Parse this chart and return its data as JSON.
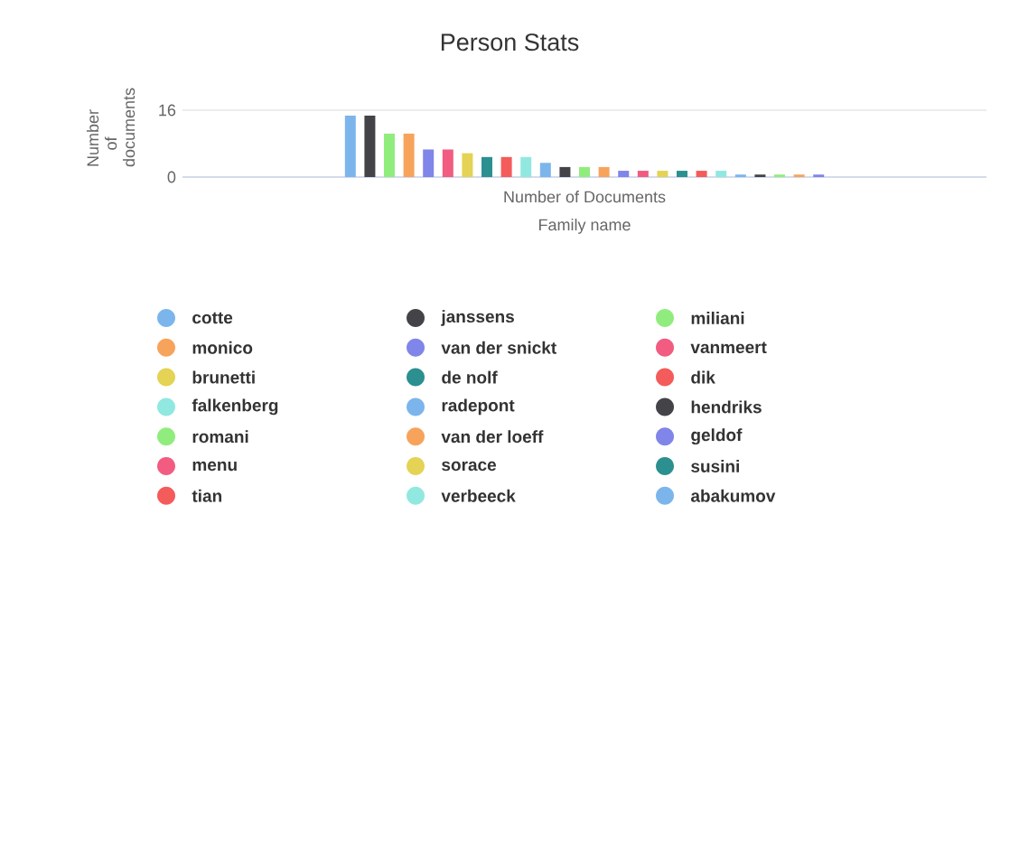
{
  "chart_data": {
    "type": "bar",
    "title": "Person Stats",
    "xlabel": "Family name",
    "ylabel": "Number of documents",
    "categories": [
      "Number of Documents"
    ],
    "series": [
      {
        "name": "cotte",
        "color": "#7cb5ec",
        "values": [
          14.7
        ]
      },
      {
        "name": "janssens",
        "color": "#434348",
        "values": [
          14.7
        ]
      },
      {
        "name": "miliani",
        "color": "#90ed7d",
        "values": [
          10.4
        ]
      },
      {
        "name": "monico",
        "color": "#f7a35c",
        "values": [
          10.4
        ]
      },
      {
        "name": "van der snickt",
        "color": "#8085e9",
        "values": [
          6.6
        ]
      },
      {
        "name": "vanmeert",
        "color": "#f15c80",
        "values": [
          6.6
        ]
      },
      {
        "name": "brunetti",
        "color": "#e4d354",
        "values": [
          5.7
        ]
      },
      {
        "name": "de nolf",
        "color": "#2b908f",
        "values": [
          4.8
        ]
      },
      {
        "name": "dik",
        "color": "#f45b5b",
        "values": [
          4.8
        ]
      },
      {
        "name": "falkenberg",
        "color": "#91e8e1",
        "values": [
          4.8
        ]
      },
      {
        "name": "radepont",
        "color": "#7cb5ec",
        "values": [
          3.4
        ]
      },
      {
        "name": "hendriks",
        "color": "#434348",
        "values": [
          2.4
        ]
      },
      {
        "name": "romani",
        "color": "#90ed7d",
        "values": [
          2.4
        ]
      },
      {
        "name": "van der loeff",
        "color": "#f7a35c",
        "values": [
          2.4
        ]
      },
      {
        "name": "geldof",
        "color": "#8085e9",
        "values": [
          1.5
        ]
      },
      {
        "name": "menu",
        "color": "#f15c80",
        "values": [
          1.5
        ]
      },
      {
        "name": "sorace",
        "color": "#e4d354",
        "values": [
          1.5
        ]
      },
      {
        "name": "susini",
        "color": "#2b908f",
        "values": [
          1.5
        ]
      },
      {
        "name": "tian",
        "color": "#f45b5b",
        "values": [
          1.5
        ]
      },
      {
        "name": "verbeeck",
        "color": "#91e8e1",
        "values": [
          1.5
        ]
      },
      {
        "name": "abakumov",
        "color": "#7cb5ec",
        "values": [
          0.6
        ]
      },
      {
        "color": "#434348",
        "values": [
          0.6
        ]
      },
      {
        "color": "#90ed7d",
        "values": [
          0.6
        ]
      },
      {
        "color": "#f7a35c",
        "values": [
          0.6
        ]
      },
      {
        "color": "#8085e9",
        "values": [
          0.6
        ]
      }
    ],
    "ylim": [
      0,
      16
    ],
    "yticks": [
      0,
      16
    ],
    "grid": "y",
    "legend": "bottom"
  }
}
